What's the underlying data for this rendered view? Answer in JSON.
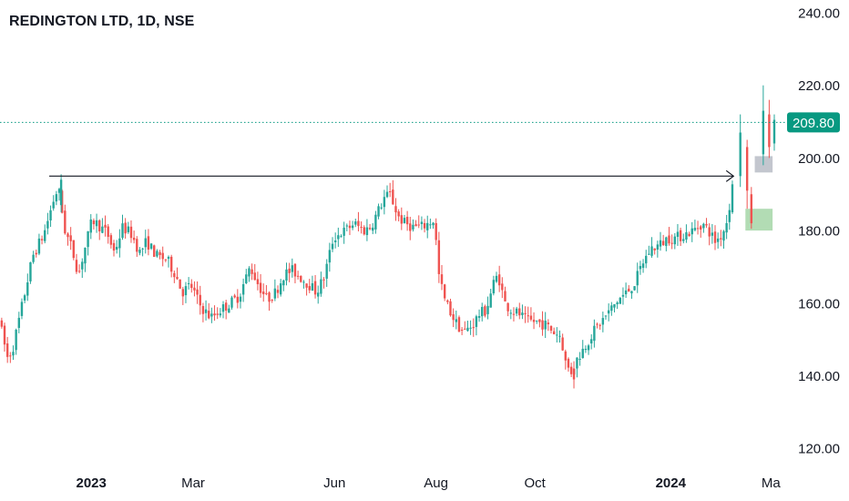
{
  "chart_data": {
    "type": "candlestick",
    "title": "REDINGTON LTD, 1D, NSE",
    "y_axis": {
      "ticks": [
        "240.00",
        "220.00",
        "200.00",
        "180.00",
        "160.00",
        "140.00",
        "120.00"
      ],
      "tick_values": [
        240,
        220,
        200,
        180,
        160,
        140,
        120
      ],
      "range": [
        114.5,
        243.5
      ]
    },
    "x_axis": {
      "ticks": [
        {
          "label": "2023",
          "bold": true,
          "t": 0.1075
        },
        {
          "label": "Mar",
          "bold": false,
          "t": 0.2275
        },
        {
          "label": "Jun",
          "bold": false,
          "t": 0.394
        },
        {
          "label": "Aug",
          "bold": false,
          "t": 0.5135
        },
        {
          "label": "Oct",
          "bold": false,
          "t": 0.63
        },
        {
          "label": "2024",
          "bold": true,
          "t": 0.79
        },
        {
          "label": "Ma",
          "bold": false,
          "t": 0.908
        }
      ]
    },
    "current_price": {
      "value": 209.8,
      "label": "209.80"
    },
    "annotations": {
      "horizontal_arrow": {
        "price": 195,
        "from_t": 0.058,
        "to_t": 0.864
      },
      "zones": [
        {
          "name": "grey-zone",
          "price_low": 196,
          "price_high": 200.5,
          "from_t": 0.889,
          "to_t": 0.91,
          "color": "#b8bcc6"
        },
        {
          "name": "green-zone",
          "price_low": 180,
          "price_high": 186,
          "from_t": 0.878,
          "to_t": 0.91,
          "color": "#a5d6a7"
        }
      ]
    },
    "colors": {
      "up": "#26a69a",
      "down": "#ef5350",
      "price_line": "#089981",
      "arrow": "#131722",
      "text": "#131722"
    },
    "grid": false,
    "price_path": [
      [
        0.0,
        158
      ],
      [
        0.012,
        145
      ],
      [
        0.018,
        147
      ],
      [
        0.03,
        160
      ],
      [
        0.042,
        173
      ],
      [
        0.055,
        179
      ],
      [
        0.066,
        188
      ],
      [
        0.072,
        192
      ],
      [
        0.08,
        180
      ],
      [
        0.088,
        175
      ],
      [
        0.096,
        168
      ],
      [
        0.1,
        172
      ],
      [
        0.112,
        183
      ],
      [
        0.122,
        181
      ],
      [
        0.13,
        179
      ],
      [
        0.138,
        174
      ],
      [
        0.148,
        181
      ],
      [
        0.158,
        179
      ],
      [
        0.168,
        174
      ],
      [
        0.176,
        177
      ],
      [
        0.188,
        173
      ],
      [
        0.2,
        172
      ],
      [
        0.21,
        168
      ],
      [
        0.218,
        163
      ],
      [
        0.228,
        165
      ],
      [
        0.24,
        159
      ],
      [
        0.252,
        156
      ],
      [
        0.262,
        158
      ],
      [
        0.275,
        160
      ],
      [
        0.285,
        162
      ],
      [
        0.298,
        170
      ],
      [
        0.308,
        165
      ],
      [
        0.318,
        161
      ],
      [
        0.328,
        163
      ],
      [
        0.338,
        168
      ],
      [
        0.348,
        169
      ],
      [
        0.358,
        167
      ],
      [
        0.368,
        165
      ],
      [
        0.376,
        163
      ],
      [
        0.385,
        167
      ],
      [
        0.396,
        178
      ],
      [
        0.41,
        180
      ],
      [
        0.42,
        182
      ],
      [
        0.432,
        180
      ],
      [
        0.44,
        181
      ],
      [
        0.448,
        185
      ],
      [
        0.456,
        189
      ],
      [
        0.463,
        190
      ],
      [
        0.472,
        184
      ],
      [
        0.48,
        182
      ],
      [
        0.49,
        181
      ],
      [
        0.5,
        181
      ],
      [
        0.508,
        182
      ],
      [
        0.515,
        183
      ],
      [
        0.52,
        168
      ],
      [
        0.527,
        161
      ],
      [
        0.535,
        157
      ],
      [
        0.542,
        154
      ],
      [
        0.55,
        152
      ],
      [
        0.56,
        154
      ],
      [
        0.568,
        157
      ],
      [
        0.576,
        158
      ],
      [
        0.584,
        165
      ],
      [
        0.59,
        168
      ],
      [
        0.598,
        160
      ],
      [
        0.606,
        158
      ],
      [
        0.615,
        157
      ],
      [
        0.624,
        155
      ],
      [
        0.634,
        155
      ],
      [
        0.646,
        154
      ],
      [
        0.656,
        152
      ],
      [
        0.664,
        151
      ],
      [
        0.67,
        143
      ],
      [
        0.676,
        141
      ],
      [
        0.684,
        145
      ],
      [
        0.692,
        148
      ],
      [
        0.702,
        152
      ],
      [
        0.712,
        155
      ],
      [
        0.722,
        158
      ],
      [
        0.732,
        161
      ],
      [
        0.742,
        163
      ],
      [
        0.752,
        166
      ],
      [
        0.76,
        171
      ],
      [
        0.77,
        175
      ],
      [
        0.78,
        176
      ],
      [
        0.79,
        178
      ],
      [
        0.8,
        178
      ],
      [
        0.81,
        179
      ],
      [
        0.82,
        180
      ],
      [
        0.83,
        182
      ],
      [
        0.838,
        180
      ],
      [
        0.846,
        177
      ],
      [
        0.854,
        179
      ],
      [
        0.86,
        183
      ],
      [
        0.866,
        192
      ],
      [
        0.872,
        206
      ],
      [
        0.878,
        200
      ],
      [
        0.884,
        186
      ],
      [
        0.89,
        190
      ],
      [
        0.896,
        203
      ],
      [
        0.902,
        212
      ],
      [
        0.906,
        207
      ],
      [
        0.912,
        210
      ]
    ],
    "special_candles": [
      {
        "t": 0.072,
        "open": 187,
        "close": 194,
        "high": 195.5,
        "low": 185
      },
      {
        "t": 0.676,
        "open": 142,
        "close": 139,
        "high": 144,
        "low": 136.5
      },
      {
        "t": 0.872,
        "open": 195,
        "close": 207,
        "high": 212,
        "low": 192
      },
      {
        "t": 0.88,
        "open": 203,
        "close": 191,
        "high": 205,
        "low": 186
      },
      {
        "t": 0.885,
        "open": 190,
        "close": 182,
        "high": 192,
        "low": 180.5
      },
      {
        "t": 0.899,
        "open": 201,
        "close": 213,
        "high": 220,
        "low": 198
      },
      {
        "t": 0.906,
        "open": 212,
        "close": 203,
        "high": 216,
        "low": 200
      },
      {
        "t": 0.912,
        "open": 204,
        "close": 210.5,
        "high": 212,
        "low": 202
      }
    ]
  }
}
